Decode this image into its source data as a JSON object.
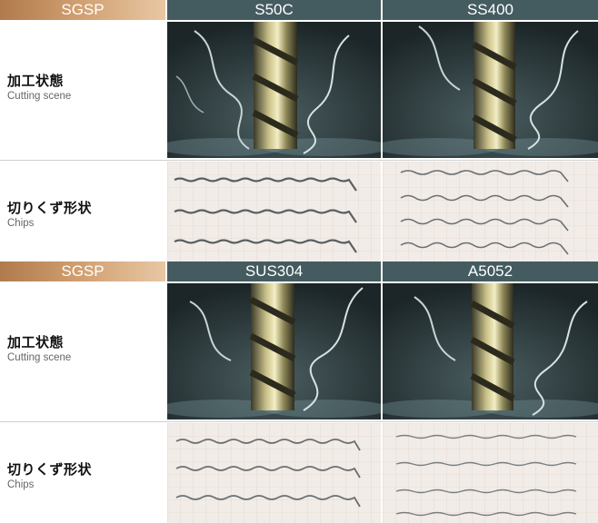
{
  "sections": [
    {
      "header": {
        "label": "SGSP",
        "material_1": "S50C",
        "material_2": "SS400"
      },
      "rows": [
        {
          "jp": "加工状態",
          "en": "Cutting scene"
        },
        {
          "jp": "切りくず形状",
          "en": "Chips"
        }
      ]
    },
    {
      "header": {
        "label": "SGSP",
        "material_1": "SUS304",
        "material_2": "A5052"
      },
      "rows": [
        {
          "jp": "加工状態",
          "en": "Cutting scene"
        },
        {
          "jp": "切りくず形状",
          "en": "Chips"
        }
      ]
    }
  ],
  "colors": {
    "label_header_gradient": [
      "#b07a4d",
      "#e8c7a4"
    ],
    "material_header": "#445c60",
    "cutting_scene_bg": "#2d3a3d",
    "chips_bg": "#f1ece7"
  }
}
